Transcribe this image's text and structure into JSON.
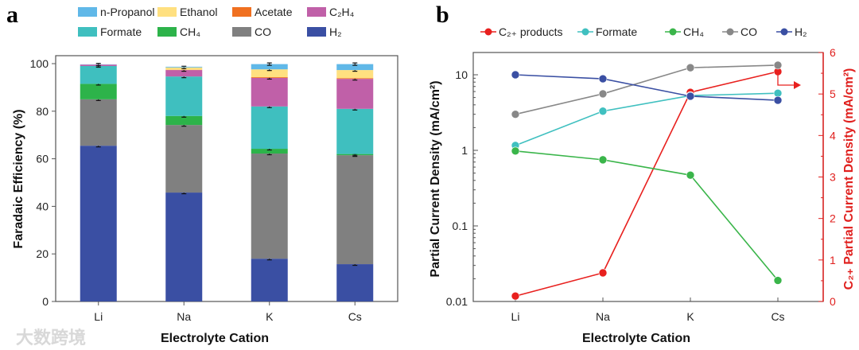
{
  "chart_data": [
    {
      "panel_label": "a",
      "type": "bar",
      "stacked": true,
      "xlabel": "Electrolyte Cation",
      "ylabel": "Faradaic Efficiency (%)",
      "ylim": [
        0,
        100
      ],
      "yticks": [
        "0",
        "20",
        "40",
        "60",
        "80",
        "100"
      ],
      "categories": [
        "Li",
        "Na",
        "K",
        "Cs"
      ],
      "series": [
        {
          "name": "H₂",
          "color": "#3a4fa3",
          "values": [
            65.5,
            45.8,
            18.0,
            15.7
          ]
        },
        {
          "name": "CO",
          "color": "#808080",
          "values": [
            19.5,
            28.4,
            44.2,
            45.8
          ]
        },
        {
          "name": "CH₄",
          "color": "#2db34a",
          "values": [
            6.5,
            3.8,
            2.0,
            0.5
          ]
        },
        {
          "name": "Formate",
          "color": "#3fbfbf",
          "values": [
            7.5,
            16.6,
            17.8,
            19.0
          ]
        },
        {
          "name": "C₂H₄",
          "color": "#c060a8",
          "values": [
            0.6,
            2.7,
            12.0,
            12.6
          ]
        },
        {
          "name": "Acetate",
          "color": "#f07020",
          "values": [
            0,
            0.1,
            0.3,
            0.3
          ]
        },
        {
          "name": "Ethanol",
          "color": "#ffe080",
          "values": [
            0,
            1.0,
            3.3,
            3.4
          ]
        },
        {
          "name": "n-Propanol",
          "color": "#60b8e8",
          "values": [
            0.1,
            0.3,
            2.2,
            2.5
          ]
        }
      ],
      "legend_order": [
        "n-Propanol",
        "Ethanol",
        "Acetate",
        "C₂H₄",
        "Formate",
        "CH₄",
        "CO",
        "H₂"
      ],
      "legend": "top"
    },
    {
      "panel_label": "b",
      "type": "line",
      "xlabel": "Electrolyte Cation",
      "ylabel": "Partial Current Density (mA/cm²)",
      "yscale": "log",
      "ylim": [
        0.01,
        40
      ],
      "yticks": [
        "0.01",
        "0.1",
        "1",
        "10"
      ],
      "y2label": "C₂₊ Partial Current Density (mA/cm²)",
      "y2lim": [
        0,
        6
      ],
      "y2ticks": [
        "0",
        "1",
        "2",
        "3",
        "4",
        "5",
        "6"
      ],
      "categories": [
        "Li",
        "Na",
        "K",
        "Cs"
      ],
      "series": [
        {
          "name": "C₂₊ products",
          "color": "#e8201e",
          "axis": "right",
          "values": [
            0.13,
            0.69,
            5.04,
            5.54
          ]
        },
        {
          "name": "Formate",
          "color": "#40c0c0",
          "axis": "left",
          "values": [
            1.16,
            3.3,
            5.3,
            5.7
          ]
        },
        {
          "name": "CH₄",
          "color": "#3ab54a",
          "axis": "left",
          "values": [
            0.98,
            0.75,
            0.47,
            0.019
          ]
        },
        {
          "name": "CO",
          "color": "#888888",
          "axis": "left",
          "values": [
            3.0,
            5.6,
            12.4,
            13.4
          ]
        },
        {
          "name": "H₂",
          "color": "#3a4fa3",
          "axis": "left",
          "values": [
            10.0,
            8.85,
            5.2,
            4.6
          ]
        }
      ],
      "legend": "top"
    }
  ],
  "watermark": "大数跨境"
}
